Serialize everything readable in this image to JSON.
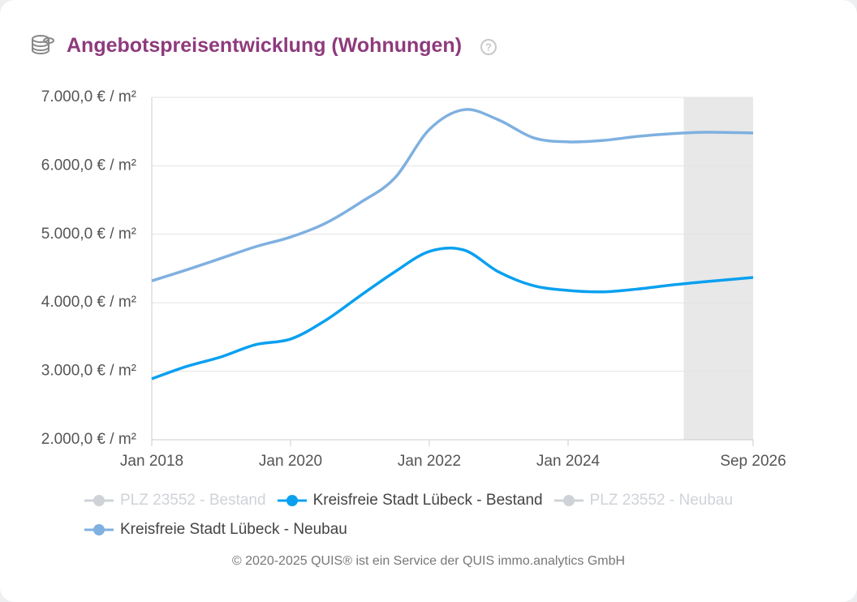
{
  "chart_data": {
    "type": "line",
    "title": "Angebotspreisentwicklung (Wohnungen)",
    "x": [
      "2018-01",
      "2018-07",
      "2019-01",
      "2019-07",
      "2020-01",
      "2020-07",
      "2021-01",
      "2021-07",
      "2022-01",
      "2022-07",
      "2023-01",
      "2023-07",
      "2024-01",
      "2024-07",
      "2025-01",
      "2025-07",
      "2026-01",
      "2026-09"
    ],
    "series": [
      {
        "name": "PLZ 23552 - Bestand",
        "color": "#cfd3d8",
        "visible": false,
        "values": [
          null,
          null,
          null,
          null,
          null,
          null,
          null,
          null,
          null,
          null,
          null,
          null,
          null,
          null,
          null,
          null,
          null,
          null
        ]
      },
      {
        "name": "Kreisfreie Stadt Lübeck - Bestand",
        "color": "#0aa0f0",
        "visible": true,
        "values": [
          2890,
          3070,
          3210,
          3390,
          3470,
          3740,
          4100,
          4450,
          4750,
          4770,
          4450,
          4250,
          4180,
          4160,
          4200,
          4260,
          4310,
          4370
        ]
      },
      {
        "name": "PLZ 23552 - Neubau",
        "color": "#cfd3d8",
        "visible": false,
        "values": [
          null,
          null,
          null,
          null,
          null,
          null,
          null,
          null,
          null,
          null,
          null,
          null,
          null,
          null,
          null,
          null,
          null,
          null
        ]
      },
      {
        "name": "Kreisfreie Stadt Lübeck - Neubau",
        "color": "#7fb0e0",
        "visible": true,
        "values": [
          4320,
          4480,
          4650,
          4820,
          4960,
          5160,
          5460,
          5820,
          6530,
          6820,
          6670,
          6410,
          6350,
          6370,
          6430,
          6470,
          6490,
          6480
        ]
      }
    ],
    "xlim": [
      "2018-01",
      "2026-09"
    ],
    "xticks": [
      {
        "value": "2018-01",
        "label": "Jan 2018"
      },
      {
        "value": "2020-01",
        "label": "Jan 2020"
      },
      {
        "value": "2022-01",
        "label": "Jan 2022"
      },
      {
        "value": "2024-01",
        "label": "Jan 2024"
      },
      {
        "value": "2026-09",
        "label": "Sep 2026"
      }
    ],
    "ylim": [
      2000,
      7000
    ],
    "yticks": [
      {
        "value": 2000,
        "label": "2.000,0 € / m²"
      },
      {
        "value": 3000,
        "label": "3.000,0 € / m²"
      },
      {
        "value": 4000,
        "label": "4.000,0 € / m²"
      },
      {
        "value": 5000,
        "label": "5.000,0 € / m²"
      },
      {
        "value": 6000,
        "label": "6.000,0 € / m²"
      },
      {
        "value": 7000,
        "label": "7.000,0 € / m²"
      }
    ],
    "shaded_region": [
      "2025-09",
      "2026-09"
    ],
    "grid": true
  },
  "footer": "© 2020-2025 QUIS® ist ein Service der QUIS immo.analytics GmbH"
}
